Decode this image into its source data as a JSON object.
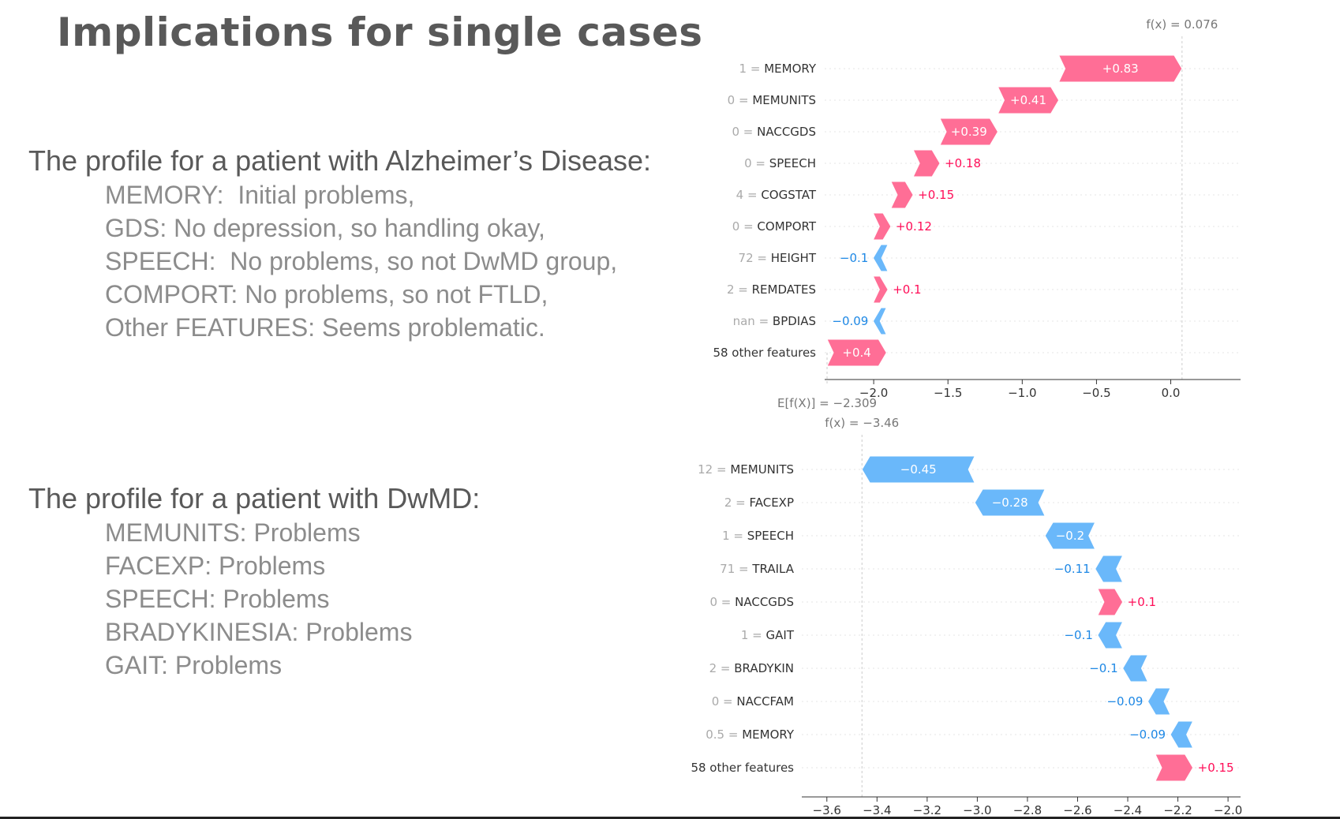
{
  "slide": {
    "title": "Implications for single cases"
  },
  "profiles": [
    {
      "heading": "The profile for a patient with Alzheimer’s Disease:",
      "items": [
        "MEMORY:  Initial problems,",
        "GDS: No depression, so handling okay,",
        "SPEECH:  No problems, so not DwMD group,",
        "COMPORT: No problems, so not FTLD,",
        "Other FEATURES: Seems problematic."
      ]
    },
    {
      "heading": "The profile for a patient with DwMD:",
      "items": [
        "MEMUNITS: Problems",
        "FACEXP: Problems",
        "SPEECH: Problems",
        "BRADYKINESIA: Problems",
        "GAIT: Problems"
      ]
    }
  ],
  "colors": {
    "positive": "#ff0d57",
    "positive_fill": "#ff6e96",
    "negative": "#1e88e5",
    "negative_fill": "#6ab8fa",
    "label_value": "#aaaaaa",
    "label_name": "#333333"
  },
  "chart_data": [
    {
      "type": "waterfall",
      "fx_label": "f(x) = 0.076",
      "fx": 0.076,
      "efx_label": "E[f(X)] = −2.309",
      "efx": -2.309,
      "xlim": [
        -2.33,
        0.47
      ],
      "xticks": [
        -2.0,
        -1.5,
        -1.0,
        -0.5,
        0.0
      ],
      "xtick_labels": [
        "−2.0",
        "−1.5",
        "−1.0",
        "−0.5",
        "0.0"
      ],
      "features": [
        {
          "value": "1",
          "name": "MEMORY",
          "shap": 0.83,
          "label": "+0.83"
        },
        {
          "value": "0",
          "name": "MEMUNITS",
          "shap": 0.41,
          "label": "+0.41"
        },
        {
          "value": "0",
          "name": "NACCGDS",
          "shap": 0.39,
          "label": "+0.39"
        },
        {
          "value": "0",
          "name": "SPEECH",
          "shap": 0.18,
          "label": "+0.18"
        },
        {
          "value": "4",
          "name": "COGSTAT",
          "shap": 0.15,
          "label": "+0.15"
        },
        {
          "value": "0",
          "name": "COMPORT",
          "shap": 0.12,
          "label": "+0.12"
        },
        {
          "value": "72",
          "name": "HEIGHT",
          "shap": -0.1,
          "label": "−0.1"
        },
        {
          "value": "2",
          "name": "REMDATES",
          "shap": 0.1,
          "label": "+0.1"
        },
        {
          "value": "nan",
          "name": "BPDIAS",
          "shap": -0.09,
          "label": "−0.09"
        },
        {
          "value": "",
          "name": "58 other features",
          "shap": 0.4,
          "label": "+0.4"
        }
      ]
    },
    {
      "type": "waterfall",
      "fx_label": "f(x) = −3.46",
      "fx": -3.46,
      "xlim": [
        -3.7,
        -1.95
      ],
      "xticks": [
        -3.6,
        -3.4,
        -3.2,
        -3.0,
        -2.8,
        -2.6,
        -2.4,
        -2.2,
        -2.0
      ],
      "xtick_labels": [
        "−3.6",
        "−3.4",
        "−3.2",
        "−3.0",
        "−2.8",
        "−2.6",
        "−2.4",
        "−2.2",
        "−2.0"
      ],
      "features": [
        {
          "value": "12",
          "name": "MEMUNITS",
          "shap": -0.45,
          "label": "−0.45"
        },
        {
          "value": "2",
          "name": "FACEXP",
          "shap": -0.28,
          "label": "−0.28"
        },
        {
          "value": "1",
          "name": "SPEECH",
          "shap": -0.2,
          "label": "−0.2"
        },
        {
          "value": "71",
          "name": "TRAILA",
          "shap": -0.11,
          "label": "−0.11"
        },
        {
          "value": "0",
          "name": "NACCGDS",
          "shap": 0.1,
          "label": "+0.1"
        },
        {
          "value": "1",
          "name": "GAIT",
          "shap": -0.1,
          "label": "−0.1"
        },
        {
          "value": "2",
          "name": "BRADYKIN",
          "shap": -0.1,
          "label": "−0.1"
        },
        {
          "value": "0",
          "name": "NACCFAM",
          "shap": -0.09,
          "label": "−0.09"
        },
        {
          "value": "0.5",
          "name": "MEMORY",
          "shap": -0.09,
          "label": "−0.09"
        },
        {
          "value": "",
          "name": "58 other features",
          "shap": 0.15,
          "label": "+0.15"
        }
      ]
    }
  ]
}
